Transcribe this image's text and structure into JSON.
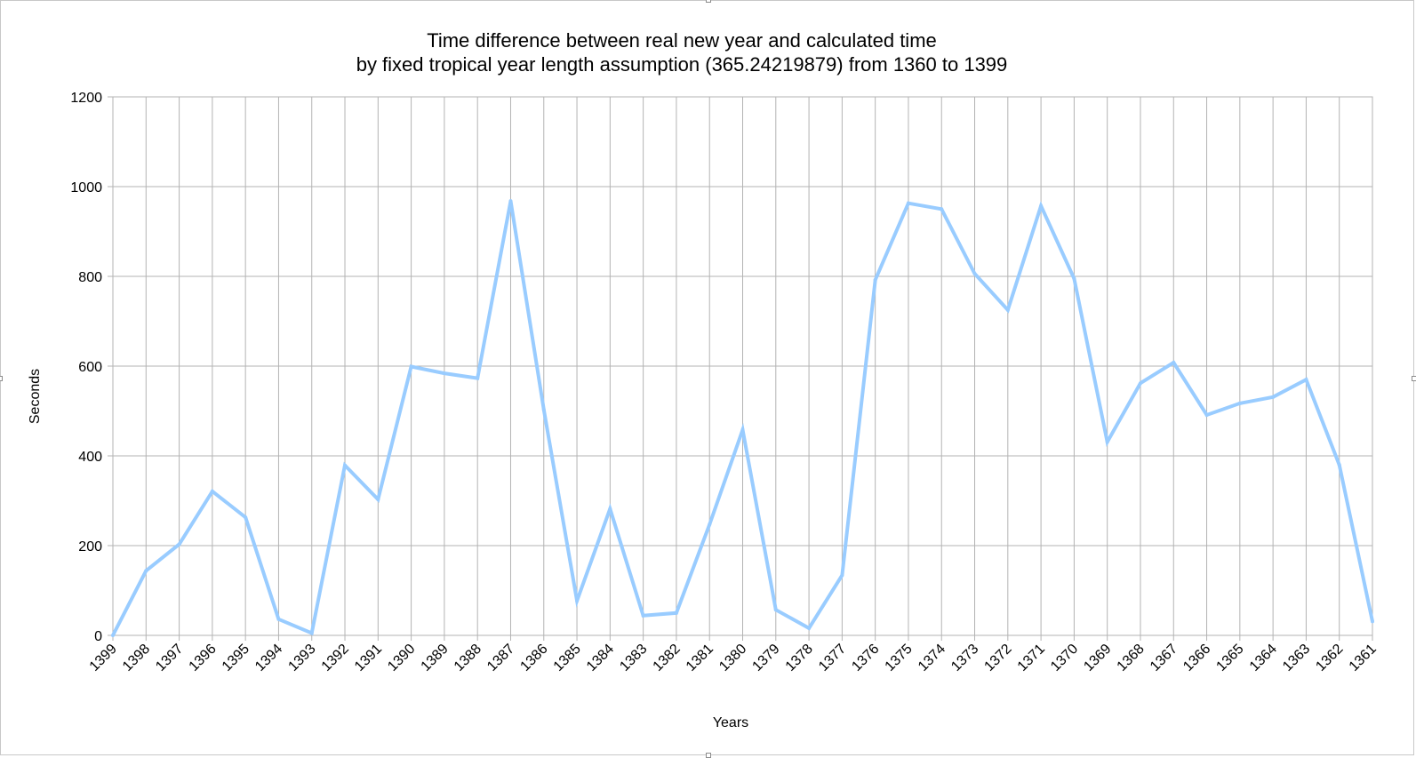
{
  "chart_data": {
    "type": "line",
    "title_line1": "Time difference between real new year and calculated time",
    "title_line2": "by fixed tropical year length assumption (365.24219879) from 1360 to 1399",
    "xlabel": "Years",
    "ylabel": "Seconds",
    "ylim": [
      0,
      1200
    ],
    "yticks": [
      0,
      200,
      400,
      600,
      800,
      1000,
      1200
    ],
    "grid": true,
    "legend": "none",
    "line_color": "#99ccff",
    "categories": [
      "1399",
      "1398",
      "1397",
      "1396",
      "1395",
      "1394",
      "1393",
      "1392",
      "1391",
      "1390",
      "1389",
      "1388",
      "1387",
      "1386",
      "1385",
      "1384",
      "1383",
      "1382",
      "1381",
      "1380",
      "1379",
      "1378",
      "1377",
      "1376",
      "1375",
      "1374",
      "1373",
      "1372",
      "1371",
      "1370",
      "1369",
      "1368",
      "1367",
      "1366",
      "1365",
      "1364",
      "1363",
      "1362",
      "1361"
    ],
    "series": [
      {
        "values": [
          0,
          144,
          203,
          321,
          263,
          36,
          5,
          379,
          303,
          599,
          584,
          573,
          968,
          503,
          77,
          282,
          44,
          50,
          247,
          458,
          57,
          16,
          134,
          792,
          963,
          950,
          806,
          725,
          957,
          795,
          431,
          562,
          608,
          491,
          517,
          531,
          570,
          380,
          31
        ]
      }
    ]
  }
}
